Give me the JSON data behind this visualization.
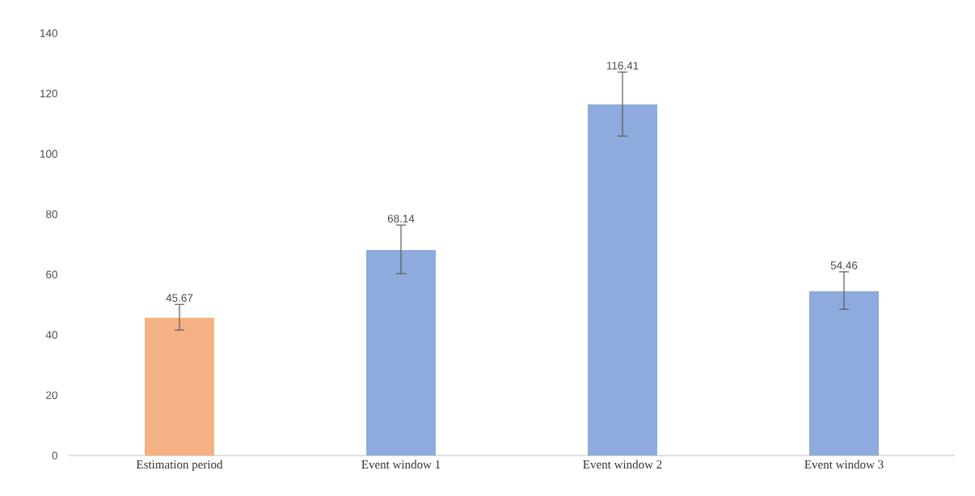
{
  "chart_data": {
    "type": "bar",
    "categories": [
      "Estimation period",
      "Event window 1",
      "Event window 2",
      "Event window 3"
    ],
    "values": [
      45.67,
      68.14,
      116.41,
      54.46
    ],
    "colors": [
      "#f4b183",
      "#8faadc",
      "#8faadc",
      "#8faadc"
    ],
    "errors": [
      [
        41.6,
        50.1
      ],
      [
        60.3,
        76.4
      ],
      [
        105.9,
        127.1
      ],
      [
        48.5,
        60.9
      ]
    ],
    "data_labels": true,
    "ylim": [
      0,
      140
    ],
    "yticks": [
      0,
      20,
      40,
      60,
      80,
      100,
      120,
      140
    ],
    "grid": false
  }
}
